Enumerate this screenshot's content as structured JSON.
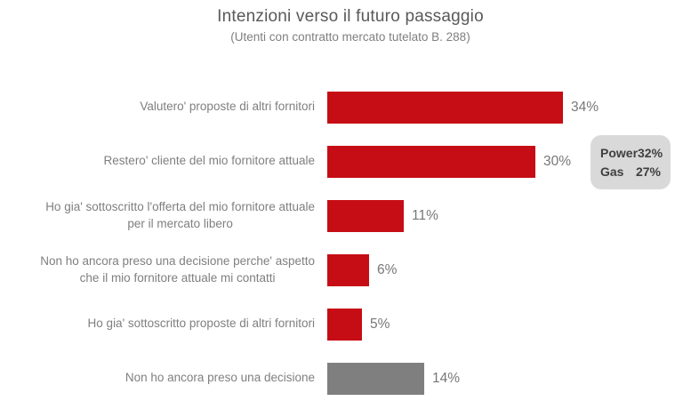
{
  "chart_data": {
    "type": "bar",
    "orientation": "horizontal",
    "title": "Intenzioni verso il futuro passaggio",
    "subtitle": "(Utenti con contratto mercato tutelato B. 288)",
    "categories": [
      "Valutero' proposte di altri fornitori",
      "Restero' cliente del mio fornitore attuale",
      "Ho gia' sottoscritto l'offerta del mio fornitore attuale\nper il mercato libero",
      "Non ho ancora preso una decisione perche' aspetto\nche il mio fornitore attuale mi contatti",
      "Ho gia' sottoscritto proposte di altri fornitori",
      "Non ho ancora preso una decisione"
    ],
    "values": [
      34,
      30,
      11,
      6,
      5,
      14
    ],
    "value_labels": [
      "34%",
      "30%",
      "11%",
      "6%",
      "5%",
      "14%"
    ],
    "bar_color_keys": [
      "red",
      "red",
      "red",
      "red",
      "red",
      "gray"
    ],
    "colors": {
      "red": "#C60D15",
      "gray": "#7F7F7F",
      "callout_bg": "#D9D9D9",
      "callout_text": "#3F3F3F",
      "title_text": "#595959",
      "label_text": "#7F7F7F"
    },
    "xlim": [
      0,
      34
    ],
    "grid": false,
    "legend": false,
    "annotation": {
      "rows": [
        {
          "name": "Power",
          "value": "32%"
        },
        {
          "name": "Gas",
          "value": "27%"
        }
      ]
    }
  }
}
